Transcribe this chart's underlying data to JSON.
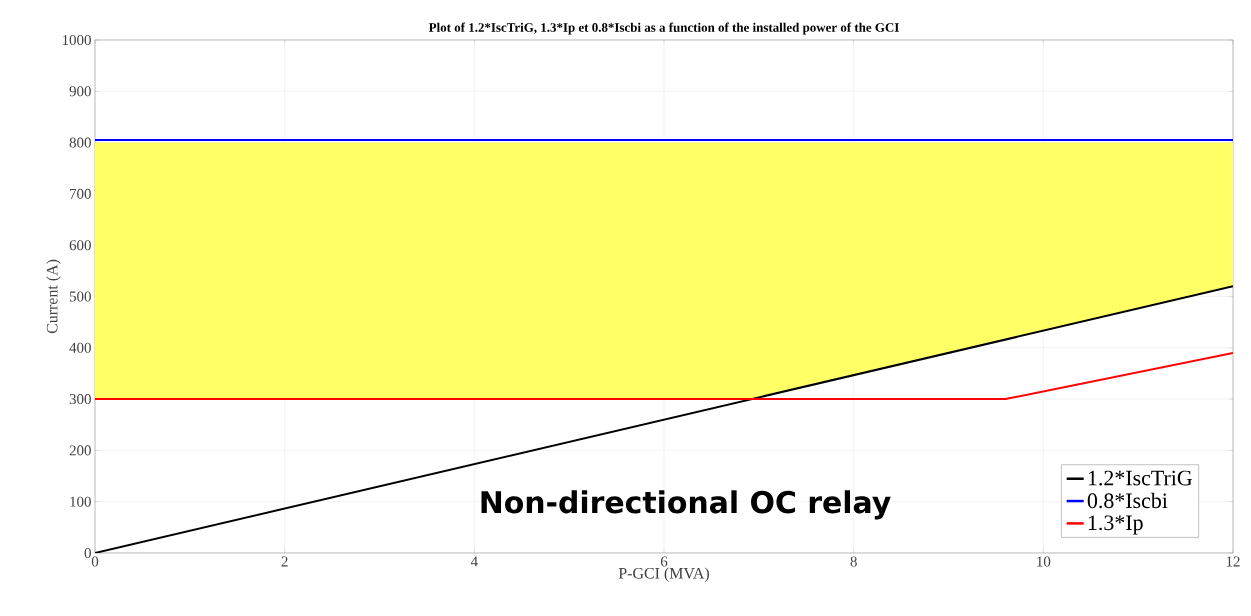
{
  "chart_data": {
    "type": "line",
    "title": "Plot of 1.2*IscTriG, 1.3*Ip et 0.8*Iscbi as a function of the installed power of the GCI",
    "xlabel": "P-GCI (MVA)",
    "ylabel": "Current (A)",
    "series": [
      {
        "name": "1.2*IscTriG",
        "color": "#000000",
        "x": [
          0,
          12
        ],
        "values": [
          0,
          520
        ]
      },
      {
        "name": "0.8*Iscbi",
        "color": "#0000ff",
        "x": [
          0,
          6.92,
          12
        ],
        "values": [
          805,
          805,
          805
        ],
        "lower": [
          300,
          300,
          520
        ],
        "upper": [
          800,
          800,
          800
        ]
      },
      {
        "name": "1.3*Ip",
        "color": "#ff0000",
        "x": [
          0,
          9.6,
          12
        ],
        "values": [
          300,
          300,
          390
        ]
      }
    ],
    "xlim": [
      0,
      12
    ],
    "ylim": [
      0,
      1000
    ],
    "xticks": [
      0,
      2,
      4,
      6,
      8,
      10,
      12
    ],
    "yticks": [
      0,
      100,
      200,
      300,
      400,
      500,
      600,
      700,
      800,
      900,
      1000
    ],
    "grid": true,
    "legend": "bottom right",
    "line_style": "solid",
    "marker": "none",
    "annotations": [
      "Non-directional OC relay"
    ]
  }
}
